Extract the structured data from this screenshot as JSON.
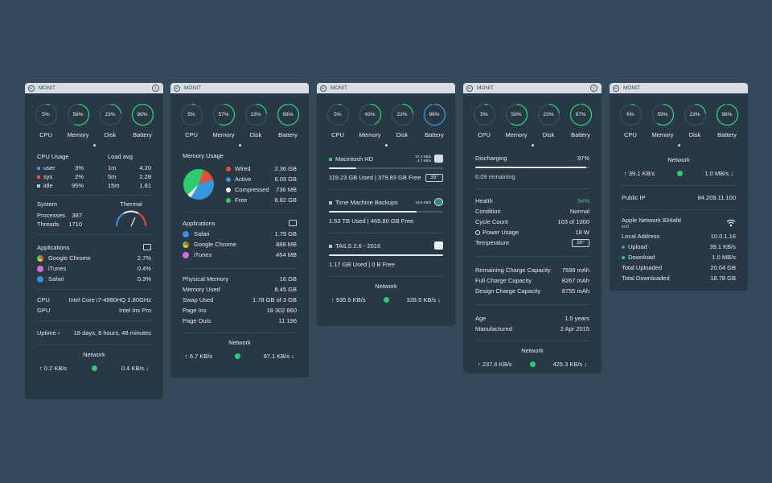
{
  "app": "MONIT",
  "gauge_labels": [
    "CPU",
    "Memory",
    "Disk",
    "Battery"
  ],
  "colors": {
    "ring": "#2ecc71",
    "ring_blue": "#3498db",
    "track": "#3e4e5b"
  },
  "panel1": {
    "gauges": [
      "5%",
      "56%",
      "23%",
      "99%"
    ],
    "cpu_usage_label": "CPU Usage",
    "load_label": "Load avg",
    "cpu": [
      {
        "k": "user",
        "v": "3%",
        "c": "#3498db"
      },
      {
        "k": "sys",
        "v": "2%",
        "c": "#e74c3c"
      },
      {
        "k": "idle",
        "v": "95%",
        "c": "#bdc3c7"
      }
    ],
    "load": [
      {
        "k": "1m",
        "v": "4.20"
      },
      {
        "k": "5m",
        "v": "2.28"
      },
      {
        "k": "15m",
        "v": "1.81"
      }
    ],
    "system_label": "System",
    "thermal_label": "Thermal",
    "processes_label": "Processes",
    "processes": "387",
    "threads_label": "Threads",
    "threads": "1710",
    "apps_label": "Applications",
    "apps": [
      {
        "n": "Google Chrome",
        "v": "2.7%"
      },
      {
        "n": "iTunes",
        "v": "0.4%"
      },
      {
        "n": "Safari",
        "v": "0.3%"
      }
    ],
    "cpu_k": "CPU",
    "cpu_v": "Intel Core i7-4980HQ 2.80GHz",
    "gpu_k": "GPU",
    "gpu_v": "Intel Iris Pro",
    "uptime_k": "Uptime ›",
    "uptime_v": "18 days, 8 hours, 48 minutes",
    "network_label": "Network",
    "up": "↑ 0.2 KB/s",
    "down": "0.4 KB/s ↓"
  },
  "panel2": {
    "gauges": [
      "5%",
      "57%",
      "23%",
      "98%"
    ],
    "mem_label": "Memory Usage",
    "legend": [
      {
        "k": "Wired",
        "v": "2.36 GB",
        "c": "#e74c3c"
      },
      {
        "k": "Active",
        "v": "6.09 GB",
        "c": "#3498db"
      },
      {
        "k": "Compressed",
        "v": "736 MB",
        "c": "#ecf0f1"
      },
      {
        "k": "Free",
        "v": "6.82 GB",
        "c": "#2ecc71"
      }
    ],
    "pie_values": [
      2.36,
      6.09,
      0.736,
      6.82
    ],
    "apps_label": "Applications",
    "apps": [
      {
        "n": "Safari",
        "v": "1.79 GB"
      },
      {
        "n": "Google Chrome",
        "v": "888 MB"
      },
      {
        "n": "iTunes",
        "v": "454 MB"
      }
    ],
    "stats": [
      {
        "k": "Physical Memory",
        "v": "16 GB"
      },
      {
        "k": "Memory Used",
        "v": "8.45 GB"
      },
      {
        "k": "Swap Used",
        "v": "1.78 GB of 3 GB"
      },
      {
        "k": "Page Ins",
        "v": "18 302 860"
      },
      {
        "k": "Page Outs",
        "v": "11 196"
      }
    ],
    "network_label": "Network",
    "up": "↑ 6.7 KB/s",
    "down": "97.1 KB/s ↓"
  },
  "panel3": {
    "gauges": [
      "5%",
      "43%",
      "23%",
      "96%"
    ],
    "disks": [
      {
        "name": "Macintosh HD",
        "speed_top": "37.2 KB/s",
        "speed_bot": "4.7 KB/s",
        "usage": "119.23 GB Used  |  379.83 GB Free",
        "temp": "35°",
        "fill": 0.24
      },
      {
        "name": "Time Machine Backups",
        "speed_top": "43.6 KB/s",
        "speed_bot": "",
        "usage": "1.53 TB Used  |  469.80 GB Free",
        "temp": "",
        "fill": 0.77
      },
      {
        "name": "TAILS 2.6 - 2016",
        "speed_top": "",
        "speed_bot": "",
        "usage": "1.17 GB Used  |  0 B Free",
        "temp": "",
        "fill": 1.0
      }
    ],
    "network_label": "Network",
    "up": "↑ 935.5 KB/s",
    "down": "328.5 KB/s ↓"
  },
  "panel4": {
    "gauges": [
      "5%",
      "59%",
      "23%",
      "97%"
    ],
    "state": "Discharging",
    "state_pct": "97%",
    "charge": 0.97,
    "remaining": "6:09  remaining",
    "health_k": "Health",
    "health_v": "94%",
    "rows1": [
      {
        "k": "Condition",
        "v": "Normal"
      },
      {
        "k": "Cycle Count",
        "v": "103 of 1000"
      },
      {
        "k": "Power Usage",
        "v": "18 W"
      }
    ],
    "temp_k": "Temperature",
    "temp_v": "30°",
    "rows2": [
      {
        "k": "Remaining Charge Capacity",
        "v": "7599 mAh"
      },
      {
        "k": "Full Charge Capacity",
        "v": "8267 mAh"
      },
      {
        "k": "Design Charge Capacity",
        "v": "8755 mAh"
      }
    ],
    "rows3": [
      {
        "k": "Age",
        "v": "1.5 years"
      },
      {
        "k": "Manufactured",
        "v": "2 Apr 2015"
      }
    ],
    "network_label": "Network",
    "up": "↑ 237.6 KB/s",
    "down": "425.3 KB/s ↓"
  },
  "panel5": {
    "gauges": [
      "6%",
      "59%",
      "23%",
      "96%"
    ],
    "network_label": "Network",
    "up": "↑ 39.1 KB/s",
    "down": "1.0 MB/s ↓",
    "ip_k": "Public IP",
    "ip_v": "84.209.11.100",
    "wifi_name": "Apple Network 834afd",
    "wifi_if": "en0",
    "rows": [
      {
        "k": "Local Address",
        "v": "10.0.1.16",
        "c": ""
      },
      {
        "k": "Upload",
        "v": "39.1 KB/s",
        "c": "#3498db"
      },
      {
        "k": "Download",
        "v": "1.0 MB/s",
        "c": "#2ecc71"
      },
      {
        "k": "Total Uploaded",
        "v": "20.04 GB",
        "c": ""
      },
      {
        "k": "Total Downloaded",
        "v": "18.78 GB",
        "c": ""
      }
    ]
  }
}
